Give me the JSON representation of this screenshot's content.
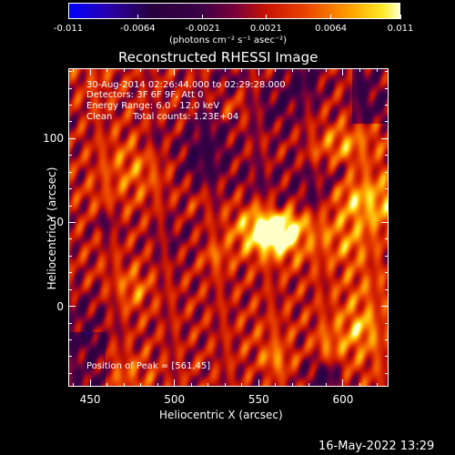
{
  "chart_data": {
    "type": "heatmap",
    "title": "Reconstructed RHESSI Image",
    "xlabel": "Heliocentric X (arcsec)",
    "ylabel": "Heliocentric Y (arcsec)",
    "xlim": [
      437,
      627
    ],
    "ylim": [
      -48,
      142
    ],
    "x_ticks": [
      "450",
      "500",
      "550",
      "600"
    ],
    "y_ticks": [
      "100",
      "50",
      "0"
    ],
    "x_tick_values": [
      450,
      500,
      550,
      600
    ],
    "y_tick_values": [
      100,
      50,
      0
    ],
    "colorbar": {
      "min": -0.011,
      "max": 0.011,
      "tick_labels": [
        "-0.011",
        "-0.0064",
        "-0.0021",
        "0.0021",
        "0.0064",
        "0.011"
      ],
      "tick_values": [
        -0.011,
        -0.0064,
        -0.0021,
        0.0021,
        0.0064,
        0.011
      ],
      "unit_label": "(photons cm⁻² s⁻¹ asec⁻²)",
      "colormap": "black-blue-purple-red-orange-yellow-white"
    },
    "annotations": {
      "time_range": "30-Aug-2014 02:26:44.000 to 02:29:28.000",
      "detectors": "Detectors: 3F 6F 9F, Att 0",
      "energy": "Energy Range: 6.0 - 12.0 keV",
      "method": "Clean",
      "counts": "Total counts: 1.23E+04",
      "peak": "Position of Peak = [561,45]"
    },
    "peak_position": [
      561,
      45
    ]
  },
  "footer": {
    "timestamp": "16-May-2022 13:29"
  }
}
